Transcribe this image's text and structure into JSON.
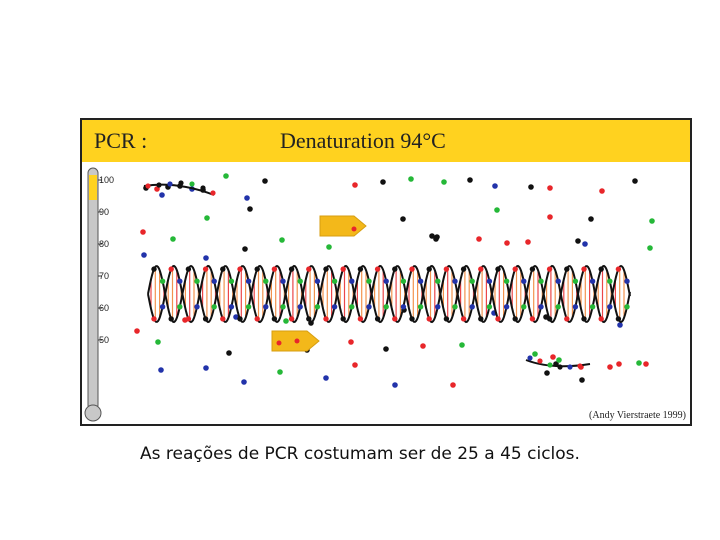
{
  "header": {
    "title": "PCR :",
    "step": "Denaturation 94°C"
  },
  "thermometer": {
    "ticks": [
      "100",
      "90",
      "80",
      "70",
      "60",
      "50"
    ],
    "level": 94
  },
  "credit": "(Andy Vierstraete 1999)",
  "caption": "As reações de PCR costumam ser de 25 a 45 ciclos.",
  "colors": {
    "header": "#ffd21f",
    "polymerase": "#f3b81a",
    "nucleotides": [
      "#111111",
      "#e8262a",
      "#25b838",
      "#2233aa"
    ],
    "strand_backbone": "#111111"
  },
  "icons": [
    "thermometer-icon",
    "polymerase-icon",
    "dna-double-helix",
    "nucleotide-dot"
  ]
}
